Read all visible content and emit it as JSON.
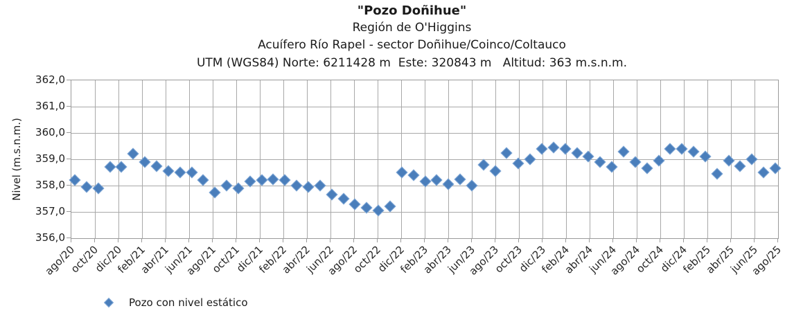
{
  "header": {
    "title": "\"Pozo Doñihue\"",
    "subtitle_region": "Región de O'Higgins",
    "subtitle_aquifer": "Acuífero Río Rapel - sector Doñihue/Coinco/Coltauco",
    "subtitle_utm": "UTM (WGS84) Norte: 6211428 m  Este: 320843 m   Altitud: 363 m.s.n.m."
  },
  "chart_data": {
    "type": "scatter",
    "title": "\"Pozo Doñihue\"",
    "subtitles": [
      "Región de O'Higgins",
      "Acuífero Río Rapel - sector Doñihue/Coinco/Coltauco",
      "UTM (WGS84) Norte: 6211428 m  Este: 320843 m   Altitud: 363 m.s.n.m."
    ],
    "xlabel": "",
    "ylabel": "Nivel (m.s.n.m.)",
    "ylim": [
      356.0,
      362.0
    ],
    "ytick_step": 1.0,
    "ytick_labels": [
      "362,0",
      "361,0",
      "360,0",
      "359,0",
      "358,0",
      "357,0",
      "356,0"
    ],
    "xtick_labels": [
      "ago/20",
      "oct/20",
      "dic/20",
      "feb/21",
      "abr/21",
      "jun/21",
      "ago/21",
      "oct/21",
      "dic/21",
      "feb/22",
      "abr/22",
      "jun/22",
      "ago/22",
      "oct/22",
      "dic/22",
      "feb/23",
      "abr/23",
      "jun/23",
      "ago/23",
      "oct/23",
      "dic/23",
      "feb/24",
      "abr/24",
      "jun/24",
      "ago/24",
      "oct/24",
      "dic/24",
      "feb/25",
      "abr/25",
      "jun/25",
      "ago/25"
    ],
    "grid": true,
    "legend_position": "bottom-left",
    "x_interval": "monthly",
    "x": [
      "ago/20",
      "sep/20",
      "oct/20",
      "nov/20",
      "dic/20",
      "ene/21",
      "feb/21",
      "mar/21",
      "abr/21",
      "may/21",
      "jun/21",
      "jul/21",
      "ago/21",
      "sep/21",
      "oct/21",
      "nov/21",
      "dic/21",
      "ene/22",
      "feb/22",
      "mar/22",
      "abr/22",
      "may/22",
      "jun/22",
      "jul/22",
      "ago/22",
      "sep/22",
      "oct/22",
      "nov/22",
      "dic/22",
      "ene/23",
      "feb/23",
      "mar/23",
      "abr/23",
      "may/23",
      "jun/23",
      "jul/23",
      "ago/23",
      "sep/23",
      "oct/23",
      "nov/23",
      "dic/23",
      "ene/24",
      "feb/24",
      "mar/24",
      "abr/24",
      "may/24",
      "jun/24",
      "jul/24",
      "ago/24",
      "sep/24",
      "oct/24",
      "nov/24",
      "dic/24",
      "ene/25",
      "feb/25",
      "mar/25",
      "abr/25",
      "may/25",
      "jun/25",
      "jul/25",
      "ago/25"
    ],
    "series": [
      {
        "name": "Pozo con nivel estático",
        "marker": "diamond",
        "color": "#4a7ebb",
        "values": [
          358.2,
          357.95,
          357.9,
          358.7,
          358.7,
          359.2,
          358.9,
          358.75,
          358.55,
          358.5,
          358.5,
          358.2,
          357.75,
          358.0,
          357.9,
          358.15,
          358.2,
          358.25,
          358.2,
          358.0,
          357.95,
          358.0,
          357.65,
          357.5,
          357.3,
          357.15,
          357.05,
          357.2,
          358.5,
          358.4,
          358.15,
          358.2,
          358.05,
          358.25,
          358.0,
          358.8,
          358.55,
          359.25,
          358.85,
          359.0,
          359.4,
          359.45,
          359.4,
          359.25,
          359.1,
          358.9,
          358.7,
          359.3,
          358.9,
          358.65,
          358.95,
          359.4,
          359.4,
          359.3,
          359.1,
          358.45,
          358.95,
          358.75,
          359.0,
          358.5,
          358.65
        ]
      }
    ]
  },
  "legend": {
    "marker_icon": "diamond-icon",
    "label": "Pozo con nivel estático"
  },
  "colors": {
    "marker_fill": "#4a7ebb",
    "marker_border": "#7fa7d6",
    "gridline": "#a8a8a8",
    "axis": "#9a9a9a",
    "text": "#1a1a1a"
  }
}
